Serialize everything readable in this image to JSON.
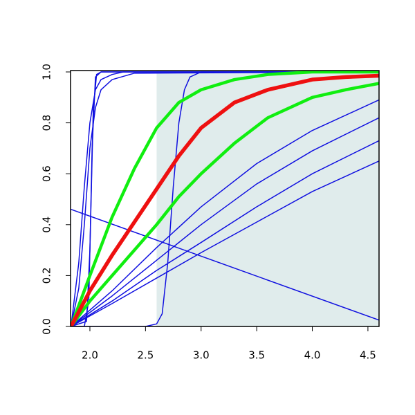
{
  "chart_data": {
    "type": "line",
    "xlim": [
      1.826,
      4.6
    ],
    "ylim": [
      0,
      1
    ],
    "xticks": [
      {
        "value": 2,
        "label": "2.0"
      },
      {
        "value": 2.5,
        "label": "2.5"
      },
      {
        "value": 3,
        "label": "3.0"
      },
      {
        "value": 3.5,
        "label": "3.5"
      },
      {
        "value": 4,
        "label": "4.0"
      },
      {
        "value": 4.5,
        "label": "4.5"
      }
    ],
    "yticks": [
      {
        "value": 0,
        "label": "0.0"
      },
      0.2,
      0.4,
      0.6,
      0.8,
      {
        "value": 1,
        "label": "1.0"
      }
    ],
    "shaded_region": {
      "x": [
        2.6,
        4.6
      ],
      "color": "#e0ecec"
    },
    "series": [
      {
        "color": "#1010e0",
        "width": 1.5,
        "x": [
          1.83,
          4.6
        ],
        "values": [
          0.46,
          0.025
        ]
      },
      {
        "color": "#1010e0",
        "width": 1.5,
        "x": [
          1.83,
          1.95,
          1.99,
          2.02,
          2.05,
          2.1,
          4.6
        ],
        "values": [
          0,
          0,
          0.1,
          0.7,
          0.98,
          1,
          1
        ]
      },
      {
        "color": "#1010e0",
        "width": 1.5,
        "x": [
          1.83,
          1.97,
          2.0,
          2.03,
          2.06,
          2.1,
          4.6
        ],
        "values": [
          0,
          0.02,
          0.3,
          0.85,
          0.99,
          1,
          1
        ]
      },
      {
        "color": "#1010e0",
        "width": 1.5,
        "x": [
          1.83,
          1.9,
          1.95,
          2.0,
          2.05,
          2.1,
          2.2,
          2.3,
          4.6
        ],
        "values": [
          0,
          0.25,
          0.55,
          0.8,
          0.93,
          0.97,
          0.99,
          1,
          1
        ]
      },
      {
        "color": "#1010e0",
        "width": 1.5,
        "x": [
          1.83,
          1.9,
          1.95,
          2.0,
          2.05,
          2.1,
          2.2,
          2.4,
          4.6
        ],
        "values": [
          0,
          0.15,
          0.4,
          0.7,
          0.86,
          0.93,
          0.97,
          0.995,
          1
        ]
      },
      {
        "color": "#1010e0",
        "width": 1.5,
        "x": [
          1.83,
          2.5,
          2.6,
          2.65,
          2.7,
          2.75,
          2.8,
          2.85,
          2.9,
          3.0,
          4.6
        ],
        "values": [
          0,
          0,
          0.01,
          0.05,
          0.25,
          0.55,
          0.8,
          0.93,
          0.98,
          1,
          1
        ]
      },
      {
        "color": "#1010e0",
        "width": 1.5,
        "x": [
          1.83,
          2.2,
          2.6,
          3.0,
          3.5,
          4.0,
          4.6
        ],
        "values": [
          0,
          0.14,
          0.31,
          0.47,
          0.64,
          0.77,
          0.89
        ]
      },
      {
        "color": "#1010e0",
        "width": 1.5,
        "x": [
          1.83,
          2.2,
          2.6,
          3.0,
          3.5,
          4.0,
          4.6
        ],
        "values": [
          0,
          0.12,
          0.26,
          0.4,
          0.56,
          0.69,
          0.82
        ]
      },
      {
        "color": "#1010e0",
        "width": 1.5,
        "x": [
          1.83,
          2.2,
          2.6,
          3.0,
          3.5,
          4.0,
          4.6
        ],
        "values": [
          0,
          0.1,
          0.22,
          0.33,
          0.47,
          0.6,
          0.73
        ]
      },
      {
        "color": "#1010e0",
        "width": 1.5,
        "x": [
          1.83,
          2.2,
          2.6,
          3.0,
          3.5,
          4.0,
          4.6
        ],
        "values": [
          0,
          0.09,
          0.19,
          0.29,
          0.41,
          0.53,
          0.65
        ]
      },
      {
        "color": "#10ee10",
        "width": 4.5,
        "x": [
          1.83,
          2.0,
          2.2,
          2.4,
          2.6,
          2.8,
          3.0,
          3.3,
          3.6,
          4.0,
          4.6
        ],
        "values": [
          0,
          0.2,
          0.43,
          0.62,
          0.78,
          0.88,
          0.93,
          0.97,
          0.99,
          1,
          1
        ]
      },
      {
        "color": "#10ee10",
        "width": 4.5,
        "x": [
          1.83,
          2.0,
          2.2,
          2.4,
          2.6,
          2.8,
          3.0,
          3.3,
          3.6,
          4.0,
          4.3,
          4.6
        ],
        "values": [
          0,
          0.1,
          0.2,
          0.3,
          0.4,
          0.51,
          0.6,
          0.72,
          0.82,
          0.9,
          0.93,
          0.955
        ]
      },
      {
        "color": "#ee1010",
        "width": 5.5,
        "x": [
          1.83,
          2.0,
          2.2,
          2.4,
          2.6,
          2.8,
          3.0,
          3.3,
          3.6,
          4.0,
          4.3,
          4.6
        ],
        "values": [
          0,
          0.14,
          0.28,
          0.41,
          0.54,
          0.67,
          0.78,
          0.88,
          0.93,
          0.97,
          0.98,
          0.985
        ]
      }
    ]
  }
}
